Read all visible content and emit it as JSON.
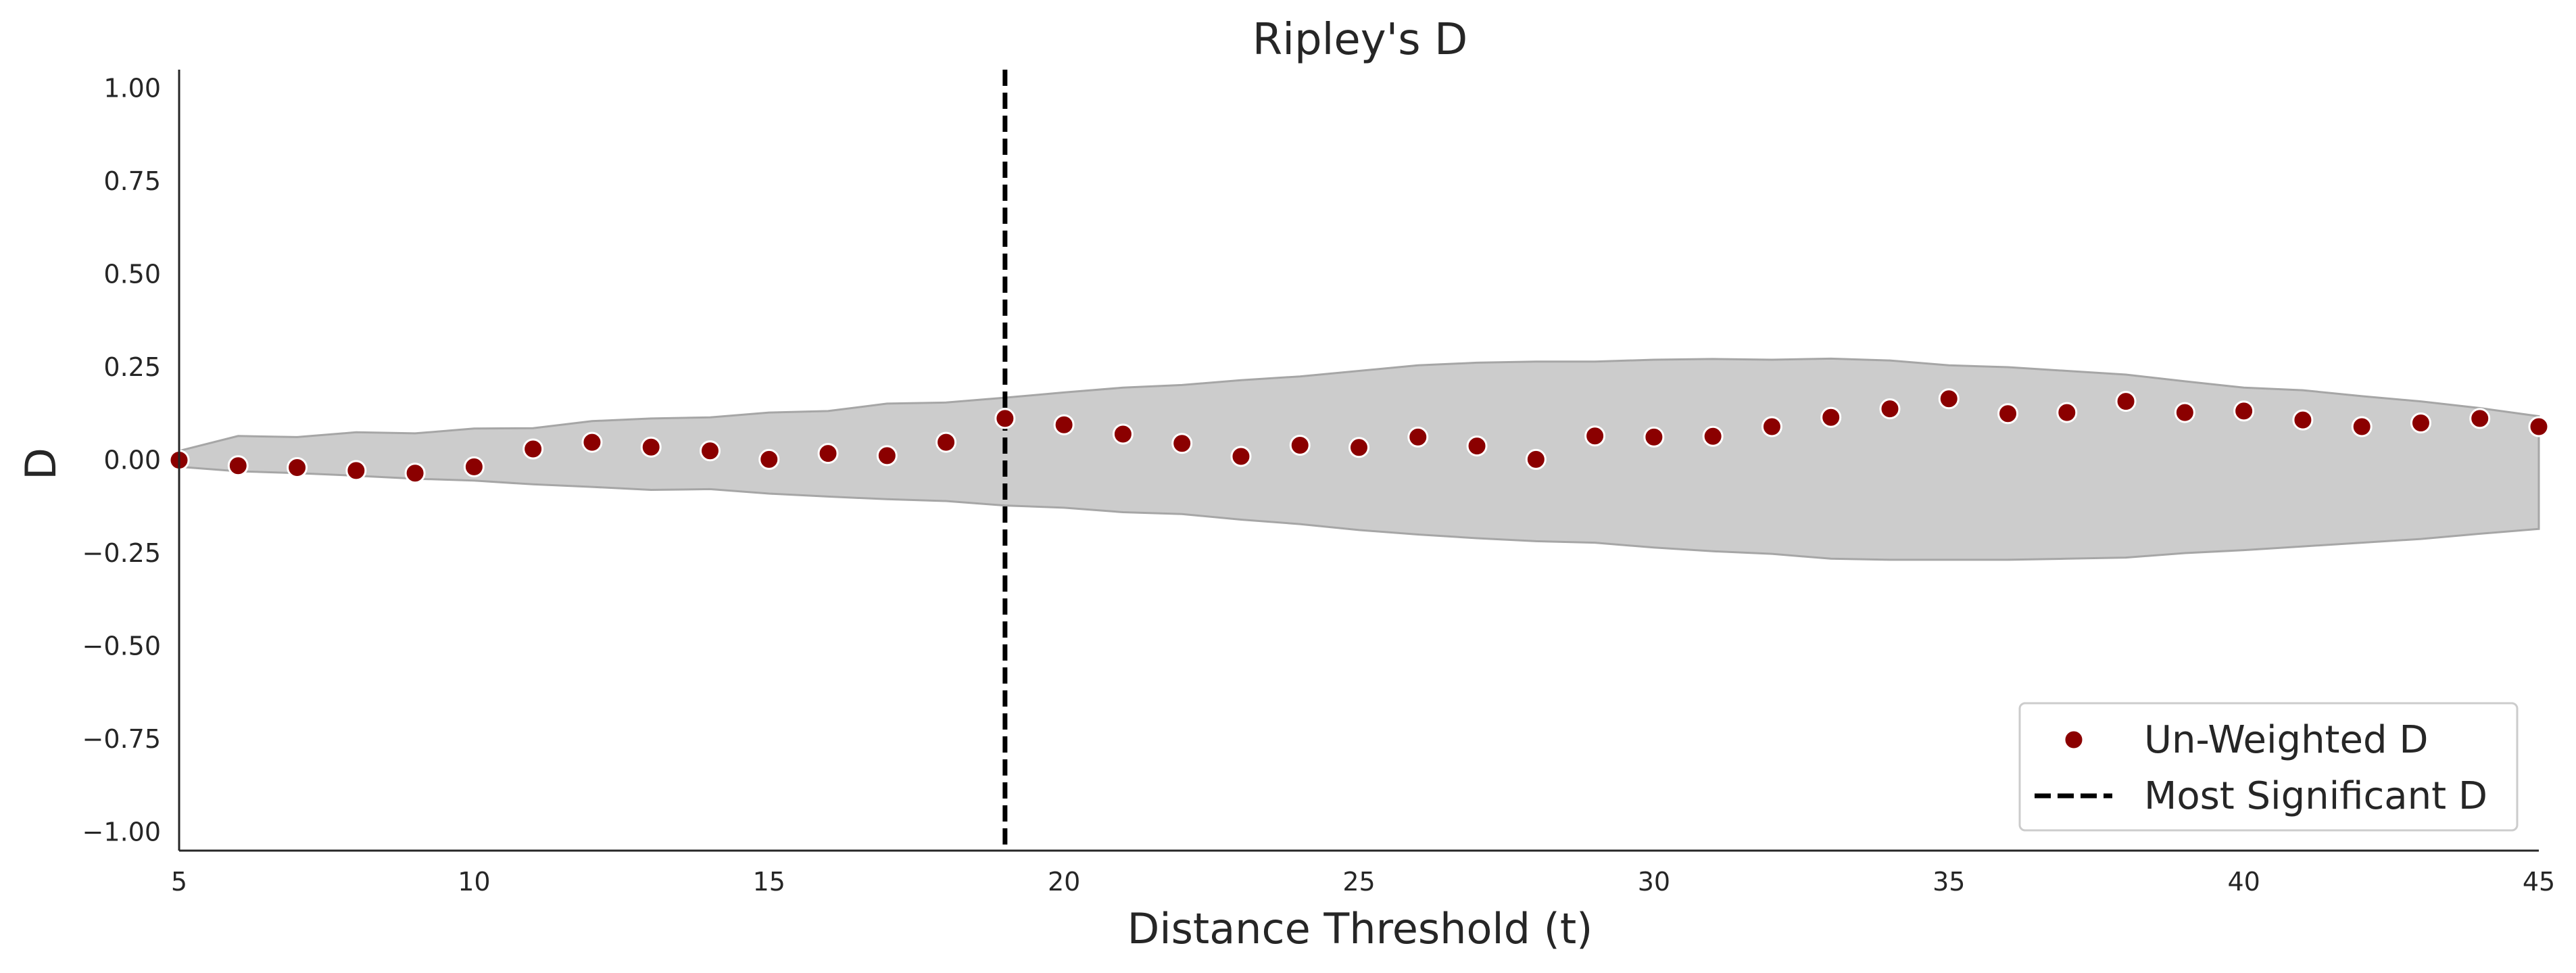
{
  "chart_data": {
    "type": "scatter",
    "title": "Ripley's D",
    "xlabel": "Distance Threshold (t)",
    "ylabel": "D",
    "xlim": [
      5,
      45
    ],
    "ylim": [
      -1.05,
      1.05
    ],
    "xticks": [
      "5",
      "10",
      "15",
      "20",
      "25",
      "30",
      "35",
      "40",
      "45"
    ],
    "yticks": [
      "1.00",
      "0.75",
      "0.50",
      "0.25",
      "0.00",
      "−0.25",
      "−0.50",
      "−0.75",
      "−1.00"
    ],
    "grid": false,
    "legend_position": "bottom-right",
    "series": [
      {
        "name": "Un-Weighted D",
        "type": "scatter",
        "color": "#8b0000",
        "x": [
          5,
          6,
          7,
          8,
          9,
          10,
          11,
          12,
          13,
          14,
          15,
          16,
          17,
          18,
          19,
          20,
          21,
          22,
          23,
          24,
          25,
          26,
          27,
          28,
          29,
          30,
          31,
          32,
          33,
          34,
          35,
          36,
          37,
          38,
          39,
          40,
          41,
          42,
          43,
          44,
          45
        ],
        "y": [
          0.0,
          -0.015,
          -0.02,
          -0.028,
          -0.035,
          -0.018,
          0.03,
          0.048,
          0.035,
          0.025,
          0.002,
          0.018,
          0.012,
          0.048,
          0.112,
          0.095,
          0.07,
          0.045,
          0.01,
          0.04,
          0.034,
          0.062,
          0.038,
          0.002,
          0.065,
          0.062,
          0.064,
          0.09,
          0.115,
          0.138,
          0.165,
          0.125,
          0.128,
          0.158,
          0.128,
          0.132,
          0.108,
          0.09,
          0.1,
          0.112,
          0.09
        ]
      },
      {
        "name": "Most Significant D",
        "type": "vline",
        "color": "#000000",
        "x": 19
      }
    ],
    "envelope": {
      "color": "#cccccc",
      "x": [
        5,
        6,
        7,
        8,
        9,
        10,
        11,
        12,
        13,
        14,
        15,
        16,
        17,
        18,
        19,
        20,
        21,
        22,
        23,
        24,
        25,
        26,
        27,
        28,
        29,
        30,
        31,
        32,
        33,
        34,
        35,
        36,
        37,
        38,
        39,
        40,
        41,
        42,
        43,
        44,
        45
      ],
      "upper": [
        0.025,
        0.065,
        0.062,
        0.075,
        0.072,
        0.085,
        0.086,
        0.105,
        0.112,
        0.115,
        0.128,
        0.132,
        0.152,
        0.155,
        0.168,
        0.182,
        0.195,
        0.202,
        0.215,
        0.225,
        0.24,
        0.255,
        0.262,
        0.265,
        0.265,
        0.27,
        0.272,
        0.27,
        0.273,
        0.268,
        0.255,
        0.25,
        0.24,
        0.23,
        0.212,
        0.195,
        0.188,
        0.172,
        0.158,
        0.14,
        0.118
      ],
      "lower": [
        -0.018,
        -0.03,
        -0.035,
        -0.042,
        -0.05,
        -0.055,
        -0.065,
        -0.072,
        -0.08,
        -0.078,
        -0.09,
        -0.098,
        -0.105,
        -0.11,
        -0.122,
        -0.128,
        -0.14,
        -0.145,
        -0.16,
        -0.172,
        -0.188,
        -0.2,
        -0.21,
        -0.218,
        -0.222,
        -0.235,
        -0.245,
        -0.252,
        -0.265,
        -0.268,
        -0.268,
        -0.268,
        -0.265,
        -0.262,
        -0.25,
        -0.242,
        -0.232,
        -0.222,
        -0.212,
        -0.198,
        -0.185
      ]
    }
  }
}
